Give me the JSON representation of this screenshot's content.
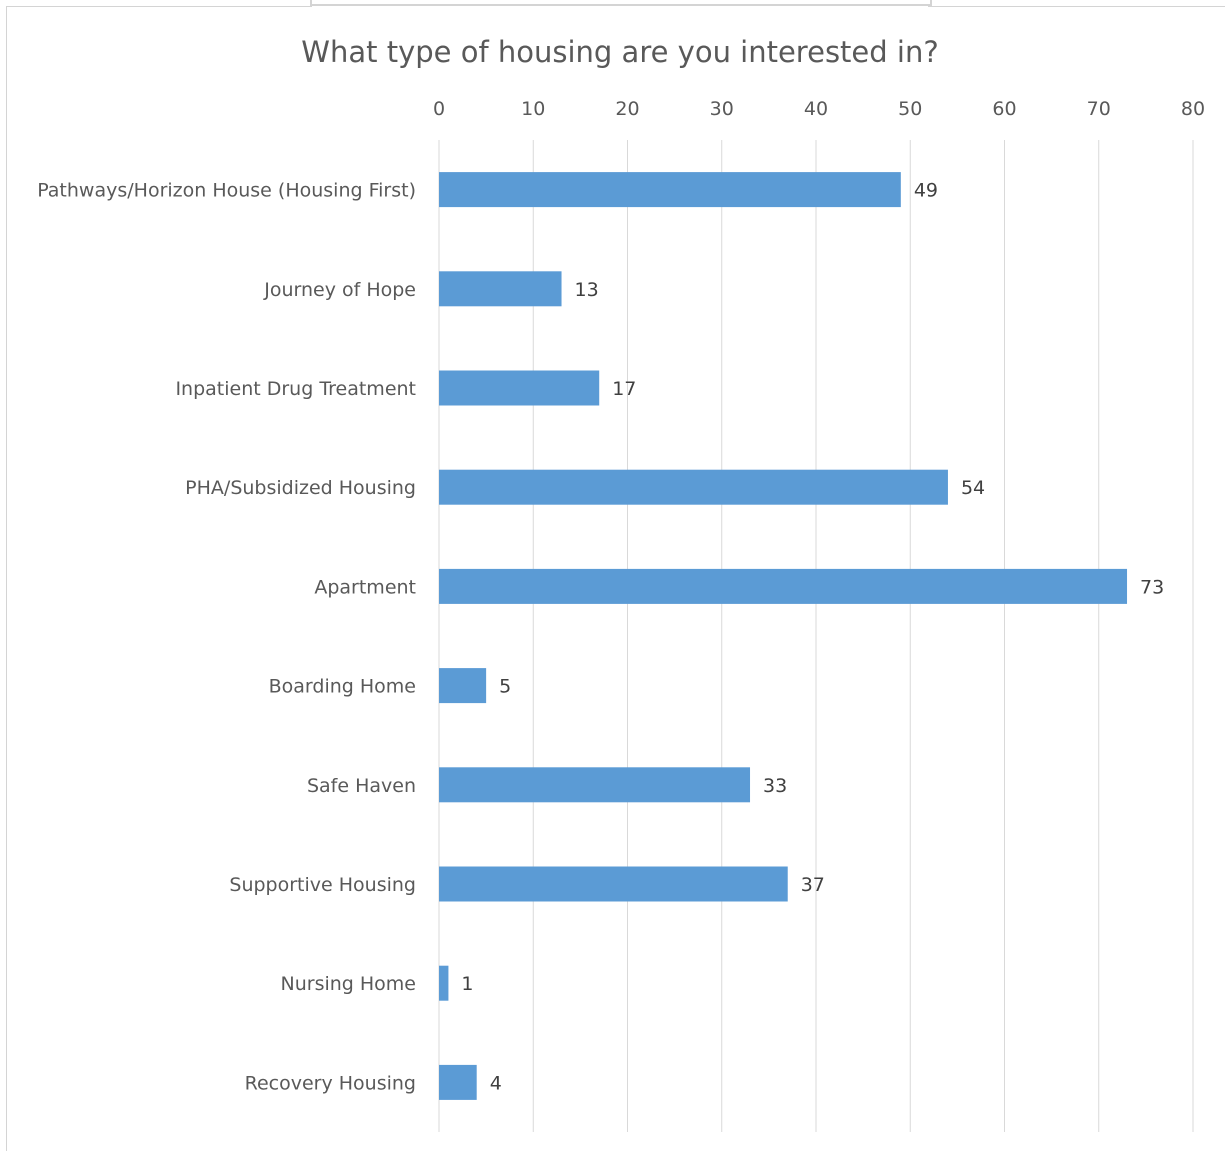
{
  "chart_data": {
    "type": "bar",
    "orientation": "horizontal",
    "title": "What type of housing are you interested in?",
    "categories": [
      "Pathways/Horizon House (Housing First)",
      "Journey of Hope",
      "Inpatient Drug Treatment",
      "PHA/Subsidized Housing",
      "Apartment",
      "Boarding Home",
      "Safe Haven",
      "Supportive Housing",
      "Nursing Home",
      "Recovery Housing"
    ],
    "values": [
      49,
      13,
      17,
      54,
      73,
      5,
      33,
      37,
      1,
      4
    ],
    "xlim": [
      0,
      80
    ],
    "x_ticks": [
      0,
      10,
      20,
      30,
      40,
      50,
      60,
      70,
      80
    ],
    "x_axis_position": "top",
    "grid": true,
    "legend": "none",
    "bar_color": "#5b9bd5"
  }
}
